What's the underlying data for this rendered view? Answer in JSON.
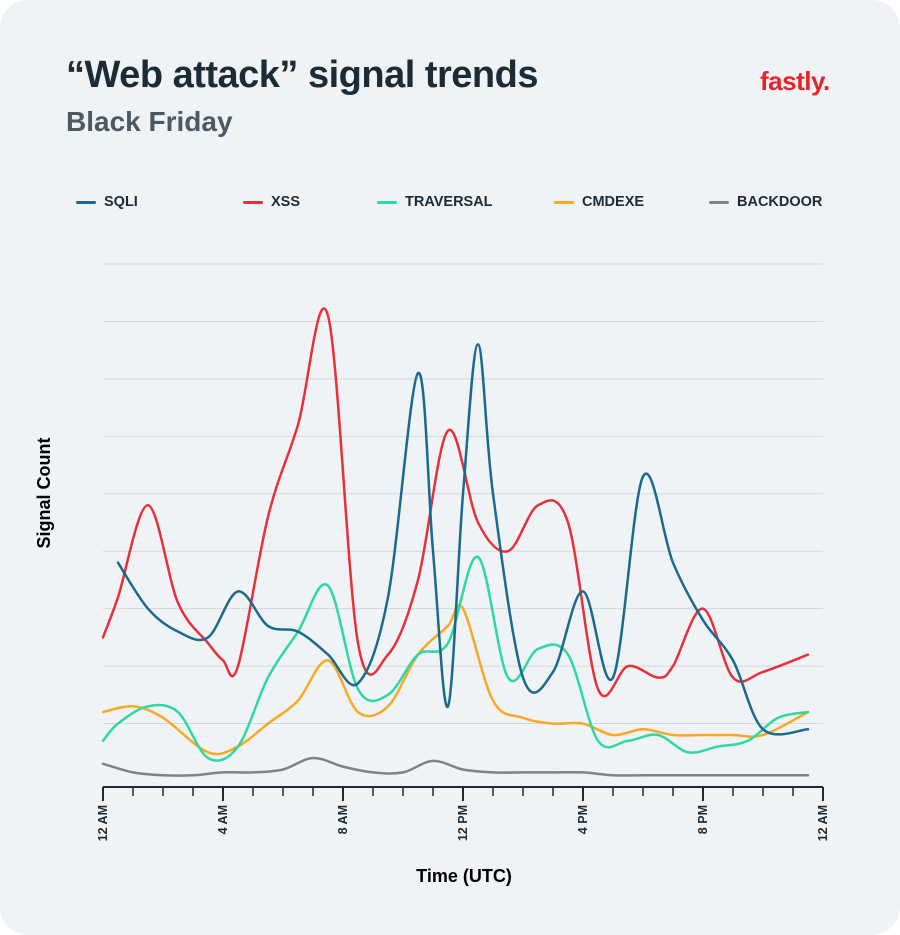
{
  "header": {
    "title": "“Web attack” signal trends",
    "subtitle": "Black Friday",
    "logo_text": "fastly."
  },
  "colors": {
    "background": "#f0f3f6",
    "gridline": "#d3d8dc",
    "axis": "#1c2b36",
    "brand": "#e8242b"
  },
  "chart_data": {
    "type": "line",
    "xlabel": "Time (UTC)",
    "ylabel": "Signal Count",
    "x_tick_labels": [
      "12 AM",
      "4 AM",
      "8 AM",
      "12 PM",
      "4 PM",
      "8 PM",
      "12 AM"
    ],
    "xlim": [
      0,
      24
    ],
    "ylim": [
      0,
      9
    ],
    "y_tick_labels_shown": false,
    "grid": "horizontal",
    "legend_position": "top",
    "series": [
      {
        "name": "SQLI",
        "color": "#1a6a8e",
        "x": [
          0.5,
          1.5,
          2.5,
          3.5,
          4.5,
          5.5,
          6.5,
          7.5,
          8.5,
          9.5,
          10.5,
          11.0,
          11.5,
          12.0,
          12.5,
          13.0,
          14.0,
          15.0,
          16.0,
          17.0,
          18.0,
          19.0,
          20.0,
          21.0,
          22.0,
          23.5
        ],
        "values": [
          3.8,
          3.0,
          2.6,
          2.5,
          3.3,
          2.7,
          2.6,
          2.2,
          1.7,
          3.2,
          7.1,
          4.0,
          1.3,
          5.0,
          7.6,
          5.0,
          1.8,
          1.9,
          3.3,
          1.8,
          5.3,
          3.8,
          2.8,
          2.1,
          0.9,
          0.9
        ]
      },
      {
        "name": "XSS",
        "color": "#e8303a",
        "x": [
          0,
          0.5,
          1.5,
          2.5,
          3.5,
          4.0,
          4.5,
          5.5,
          6.5,
          7.5,
          8.5,
          9.5,
          10.5,
          11.5,
          12.5,
          13.5,
          14.5,
          15.5,
          16.5,
          17.5,
          18.5,
          19.0,
          20.0,
          21.0,
          22.0,
          23.5
        ],
        "values": [
          2.5,
          3.2,
          4.8,
          3.1,
          2.4,
          2.1,
          2.0,
          4.6,
          6.2,
          8.1,
          2.4,
          2.2,
          3.5,
          6.1,
          4.5,
          4.0,
          4.8,
          4.5,
          1.6,
          2.0,
          1.8,
          2.0,
          3.0,
          1.8,
          1.9,
          2.2
        ]
      },
      {
        "name": "TRAVERSAL",
        "color": "#2fd8a0",
        "x": [
          0,
          0.5,
          1.5,
          2.5,
          3.5,
          4.5,
          5.5,
          6.5,
          7.5,
          8.5,
          9.5,
          10.5,
          11.5,
          12.5,
          13.5,
          14.5,
          15.5,
          16.5,
          17.5,
          18.5,
          19.5,
          20.5,
          21.5,
          22.5,
          23.5
        ],
        "values": [
          0.7,
          1.0,
          1.3,
          1.2,
          0.4,
          0.6,
          1.8,
          2.6,
          3.4,
          1.6,
          1.5,
          2.2,
          2.4,
          3.9,
          1.8,
          2.3,
          2.2,
          0.7,
          0.7,
          0.8,
          0.5,
          0.6,
          0.7,
          1.1,
          1.2
        ]
      },
      {
        "name": "CMDEXE",
        "color": "#f7a825",
        "x": [
          0,
          1,
          2,
          3.5,
          4.5,
          5.5,
          6.5,
          7.5,
          8.5,
          9.5,
          10.5,
          11.5,
          12.0,
          13.0,
          14.0,
          15.0,
          16.0,
          17.0,
          18.0,
          19.0,
          20.0,
          21.0,
          22.0,
          23.5
        ],
        "values": [
          1.2,
          1.3,
          1.1,
          0.5,
          0.6,
          1.0,
          1.4,
          2.1,
          1.2,
          1.3,
          2.2,
          2.7,
          3.0,
          1.4,
          1.1,
          1.0,
          1.0,
          0.8,
          0.9,
          0.8,
          0.8,
          0.8,
          0.8,
          1.2
        ]
      },
      {
        "name": "BACKDOOR",
        "color": "#7c8389",
        "x": [
          0,
          1,
          2,
          3,
          4,
          5,
          6,
          7,
          8,
          9,
          10,
          11,
          12,
          13,
          14,
          15,
          16,
          17,
          18,
          19,
          20,
          21,
          22,
          23,
          23.5
        ],
        "values": [
          0.3,
          0.15,
          0.1,
          0.1,
          0.15,
          0.15,
          0.2,
          0.4,
          0.25,
          0.15,
          0.15,
          0.35,
          0.2,
          0.15,
          0.15,
          0.15,
          0.15,
          0.1,
          0.1,
          0.1,
          0.1,
          0.1,
          0.1,
          0.1,
          0.1
        ]
      }
    ]
  }
}
